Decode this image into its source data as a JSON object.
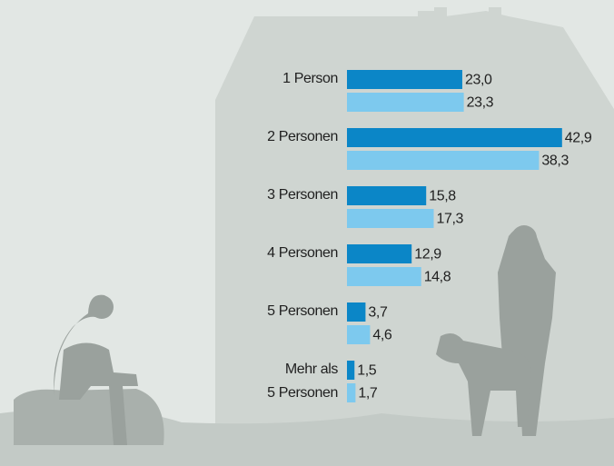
{
  "chart_data": {
    "type": "bar",
    "orientation": "horizontal",
    "categories": [
      "1 Person",
      "2 Personen",
      "3 Personen",
      "4 Personen",
      "5 Personen",
      "Mehr als\n5 Personen"
    ],
    "series": [
      {
        "color": "#0b86c7",
        "values": [
          23.0,
          42.9,
          15.8,
          12.9,
          3.7,
          1.5
        ],
        "value_labels": [
          "23,0",
          "42,9",
          "15,8",
          "12,9",
          "3,7",
          "1,5"
        ]
      },
      {
        "color": "#7dc9ee",
        "values": [
          23.3,
          38.3,
          17.3,
          14.8,
          4.6,
          1.7
        ],
        "value_labels": [
          "23,3",
          "38,3",
          "17,3",
          "14,8",
          "4,6",
          "1,7"
        ]
      }
    ]
  }
}
